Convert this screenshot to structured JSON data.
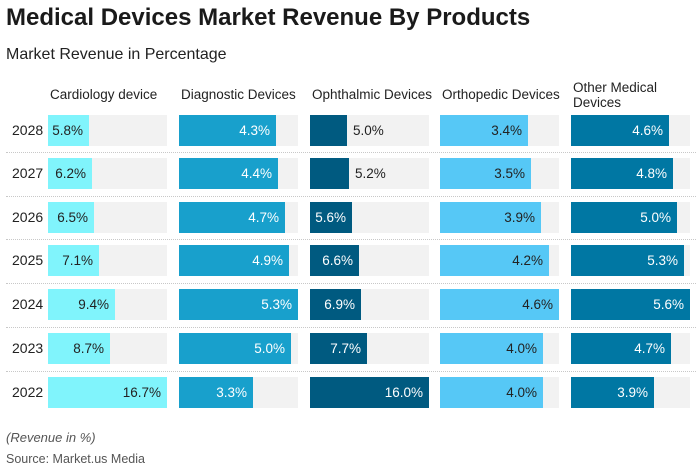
{
  "chart_data": {
    "type": "bar",
    "title": "Medical Devices Market Revenue By Products",
    "subtitle": "Market Revenue in Percentage",
    "categories": [
      "2028",
      "2027",
      "2026",
      "2025",
      "2024",
      "2023",
      "2022"
    ],
    "series": [
      {
        "name": "Cardiology device",
        "color": "#80f4fc",
        "text_color": "#222222",
        "values": [
          5.8,
          6.2,
          6.5,
          7.1,
          9.4,
          8.7,
          16.7
        ],
        "labels": [
          "5.8%",
          "6.2%",
          "6.5%",
          "7.1%",
          "9.4%",
          "8.7%",
          "16.7%"
        ]
      },
      {
        "name": "Diagnostic Devices",
        "color": "#18a0cc",
        "text_color": "#ffffff",
        "values": [
          4.3,
          4.4,
          4.7,
          4.9,
          5.3,
          5.0,
          3.3
        ],
        "labels": [
          "4.3%",
          "4.4%",
          "4.7%",
          "4.9%",
          "5.3%",
          "5.0%",
          "3.3%"
        ]
      },
      {
        "name": "Ophthalmic Devices",
        "color": "#005a80",
        "text_color": "#ffffff",
        "values": [
          5.0,
          5.2,
          5.6,
          6.6,
          6.9,
          7.7,
          16.0
        ],
        "labels": [
          "5.0%",
          "5.2%",
          "5.6%",
          "6.6%",
          "6.9%",
          "7.7%",
          "16.0%"
        ]
      },
      {
        "name": "Orthopedic Devices",
        "color": "#56c8f6",
        "text_color": "#222222",
        "values": [
          3.4,
          3.5,
          3.9,
          4.2,
          4.6,
          4.0,
          4.0
        ],
        "labels": [
          "3.4%",
          "3.5%",
          "3.9%",
          "4.2%",
          "4.6%",
          "4.0%",
          "4.0%"
        ]
      },
      {
        "name": "Other Medical Devices",
        "color": "#0077a3",
        "text_color": "#ffffff",
        "values": [
          4.6,
          4.8,
          5.0,
          5.3,
          5.6,
          4.7,
          3.9
        ],
        "labels": [
          "4.6%",
          "4.8%",
          "5.0%",
          "5.3%",
          "5.6%",
          "4.7%",
          "3.9%"
        ]
      }
    ],
    "note": "(Revenue in %)",
    "source": "Source: Market.us Media"
  }
}
